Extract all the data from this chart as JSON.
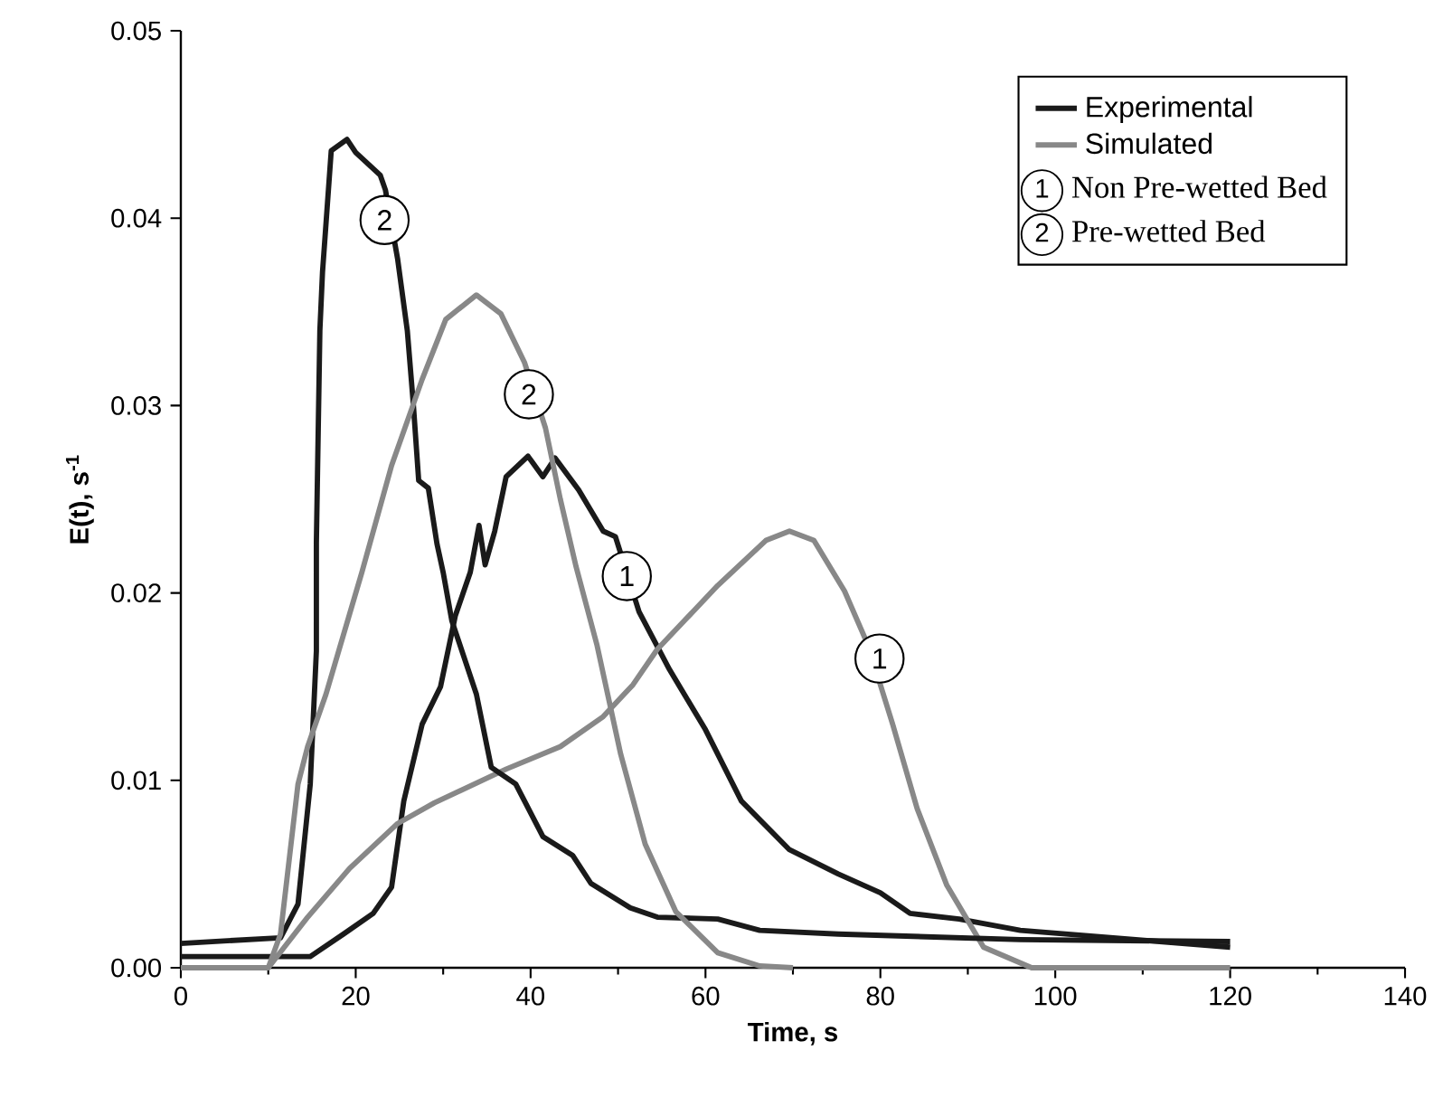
{
  "chart_data": {
    "type": "line",
    "xlabel": "Time, s",
    "ylabel": "E(t), s$^{-1}$",
    "xlim": [
      0,
      140
    ],
    "xticks": [
      0,
      20,
      40,
      60,
      80,
      100,
      120,
      140
    ],
    "ylim": [
      0,
      0.05
    ],
    "yticks": [
      {
        "value": 0,
        "label": "0.00"
      },
      {
        "value": 0.01,
        "label": "0.01"
      },
      {
        "value": 0.02,
        "label": "0.02"
      },
      {
        "value": 0.03,
        "label": "0.03"
      },
      {
        "value": 0.04,
        "label": "0.04"
      },
      {
        "value": 0.05,
        "label": "0.05"
      }
    ],
    "grid": false,
    "legend": "top right",
    "marker": "none",
    "line_style": "solid",
    "series": [
      {
        "name": "Experimental",
        "color": "#1a1a1a",
        "x": [
          0,
          14.8,
          18.6,
          22,
          24.1,
          25.5,
          27.6,
          29.7,
          31.4,
          33.1,
          34.1,
          34.8,
          35.9,
          37.2,
          39.7,
          41.4,
          42.8,
          45.5,
          48.3,
          49.7,
          52.4,
          55.9,
          60,
          64.1,
          69.6,
          75.2,
          80,
          83.4,
          89,
          96,
          120
        ],
        "values": [
          0.0006,
          0.0006,
          0.0018,
          0.0029,
          0.0043,
          0.0089,
          0.013,
          0.015,
          0.0188,
          0.0211,
          0.0236,
          0.0215,
          0.0233,
          0.0262,
          0.0273,
          0.0262,
          0.0272,
          0.0255,
          0.0233,
          0.023,
          0.019,
          0.0159,
          0.0127,
          0.0089,
          0.0063,
          0.005,
          0.004,
          0.0029,
          0.0026,
          0.002,
          0.0011
        ]
      },
      {
        "name": "Simulated",
        "color": "#888888",
        "x": [
          0,
          10,
          14.5,
          19.3,
          24.8,
          29,
          37.2,
          43.4,
          48.3,
          51.7,
          54.5,
          61.4,
          66.9,
          69.6,
          72.4,
          75.9,
          78.6,
          81.4,
          84.2,
          87.6,
          91.8,
          97.3,
          120
        ],
        "values": [
          0,
          0,
          0.0027,
          0.0053,
          0.0077,
          0.0088,
          0.0106,
          0.0118,
          0.0134,
          0.0151,
          0.017,
          0.0204,
          0.0228,
          0.0233,
          0.0228,
          0.0201,
          0.0172,
          0.013,
          0.0085,
          0.0044,
          0.0011,
          0,
          0
        ]
      },
      {
        "color": "#1a1a1a",
        "x": [
          0,
          11.4,
          13.4,
          14.8,
          15.5,
          15.5,
          15.9,
          16.2,
          17.2,
          19,
          20,
          22.8,
          23.4,
          24.8,
          25.9,
          26.6,
          27.2,
          28.3,
          29.3,
          30,
          31,
          33.8,
          35.5,
          38.3,
          41.4,
          44.8,
          46.9,
          51.4,
          54.5,
          61.4,
          66.2,
          75.2,
          96,
          120
        ],
        "values": [
          0.0013,
          0.0016,
          0.0034,
          0.0098,
          0.0169,
          0.0227,
          0.034,
          0.0371,
          0.0436,
          0.0442,
          0.0435,
          0.0423,
          0.0415,
          0.0378,
          0.034,
          0.03,
          0.026,
          0.0256,
          0.0226,
          0.0211,
          0.0185,
          0.0146,
          0.0107,
          0.0098,
          0.007,
          0.006,
          0.0045,
          0.0032,
          0.0027,
          0.0026,
          0.002,
          0.0018,
          0.0015,
          0.0014
        ]
      },
      {
        "color": "#888888",
        "x": [
          0,
          10,
          11.4,
          13.4,
          14.5,
          16.6,
          20.7,
          24.1,
          27.6,
          30.3,
          33.8,
          36.6,
          39.3,
          41.7,
          43.4,
          45.2,
          47.6,
          50.3,
          53.1,
          56.6,
          61.4,
          66.2,
          70
        ],
        "values": [
          0,
          0,
          0.0018,
          0.0098,
          0.0118,
          0.0146,
          0.0211,
          0.0268,
          0.0314,
          0.0346,
          0.0359,
          0.0349,
          0.0323,
          0.0288,
          0.025,
          0.0214,
          0.0172,
          0.0114,
          0.0066,
          0.003,
          0.0008,
          0.0001,
          0
        ]
      }
    ],
    "annotations": [
      {
        "text": "2",
        "x": 23.3,
        "y": 0.0399
      },
      {
        "text": "2",
        "x": 39.8,
        "y": 0.0306
      },
      {
        "text": "1",
        "x": 51,
        "y": 0.0209
      },
      {
        "text": "1",
        "x": 79.9,
        "y": 0.0165
      },
      "1",
      "Non Pre-wetted Bed",
      "2",
      "Pre-wetted Bed"
    ]
  }
}
